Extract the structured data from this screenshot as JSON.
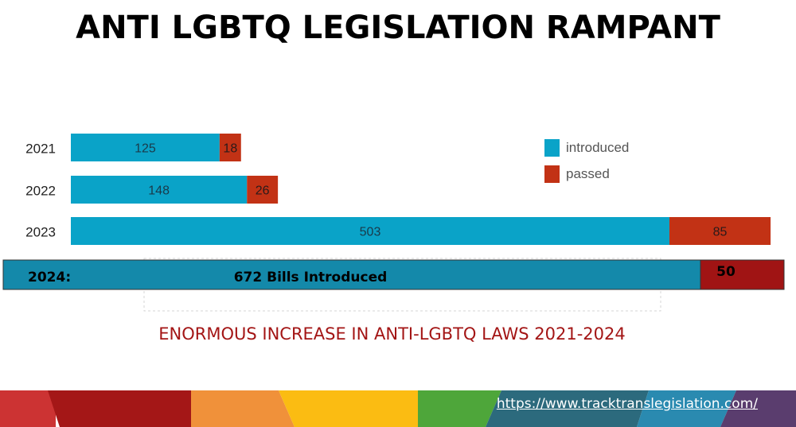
{
  "title": "ANTI LGBTQ LEGISLATION RAMPANT",
  "caption": "ENORMOUS INCREASE IN ANTI-LGBTQ LAWS 2021-2024",
  "url": "https://www.tracktranslegislation.com/",
  "colors": {
    "introduced": "#0aa3c8",
    "passed": "#c23215",
    "introduced_2024": "#1489aa",
    "passed_2024": "#a01414",
    "caption": "#a31515"
  },
  "chart_data": {
    "type": "bar",
    "orientation": "horizontal",
    "stacked": true,
    "categories": [
      "2021",
      "2022",
      "2023"
    ],
    "series": [
      {
        "name": "introduced",
        "values": [
          125,
          148,
          503
        ]
      },
      {
        "name": "passed",
        "values": [
          18,
          26,
          85
        ]
      }
    ],
    "legend": {
      "position": "top-right",
      "entries": [
        "introduced",
        "passed"
      ]
    },
    "grid": false,
    "overlay_bar": {
      "category_label": "2024:",
      "introduced": 672,
      "introduced_label": "672 Bills Introduced",
      "passed": 50,
      "passed_label": "50"
    }
  }
}
